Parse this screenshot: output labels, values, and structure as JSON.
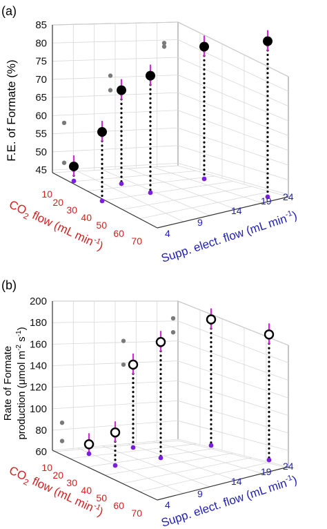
{
  "chart_data": [
    {
      "panel_label": "(a)",
      "type": "scatter",
      "zlabel": "F.E. of Formate (%)",
      "xlabel_main": "CO",
      "xlabel_sub": "2",
      "xlabel_rest": " flow (mL min",
      "xlabel_sup": "-1",
      "xlabel_end": ")",
      "ylabel_main": "Supp. elect. flow (mL min",
      "ylabel_sup": "-1",
      "ylabel_end": ")",
      "x_ticks": [
        "10",
        "20",
        "30",
        "40",
        "50",
        "60",
        "70"
      ],
      "y_ticks": [
        "4",
        "9",
        "14",
        "19",
        "24"
      ],
      "z_ticks": [
        "45",
        "50",
        "55",
        "60",
        "65",
        "70",
        "75",
        "80",
        "85"
      ],
      "zlim": [
        42,
        85
      ],
      "points": [
        {
          "x": 10,
          "y": 4,
          "z": 46
        },
        {
          "x": 20,
          "y": 4,
          "z": 55.5
        },
        {
          "x": 30,
          "y": 9,
          "z": 67
        },
        {
          "x": 40,
          "y": 9,
          "z": 71
        },
        {
          "x": 50,
          "y": 19,
          "z": 79
        },
        {
          "x": 60,
          "y": 24,
          "z": 80.5
        }
      ],
      "gray_points": [
        {
          "z": 47
        },
        {
          "z": 58
        },
        {
          "z": 67
        },
        {
          "z": 71
        },
        {
          "z": 79
        },
        {
          "z": 80
        }
      ],
      "colors": {
        "x_axis": "#d42020",
        "y_axis": "#2020b8",
        "error": "#d32ad6",
        "base": "#7a1fe0",
        "gray": "#7a7a7a"
      }
    },
    {
      "panel_label": "(b)",
      "type": "scatter",
      "zlabel_line1": "Rate of Formate",
      "zlabel_line2": "production (μmol m",
      "zlabel_sup1": "-2",
      "zlabel_mid": " s",
      "zlabel_sup2": "-1",
      "zlabel_end": ")",
      "xlabel_main": "CO",
      "xlabel_sub": "2",
      "xlabel_rest": " flow (mL min",
      "xlabel_sup": "-1",
      "xlabel_end": ")",
      "ylabel_main": "Supp. elect. flow (mL min",
      "ylabel_sup": "-1",
      "ylabel_end": ")",
      "x_ticks": [
        "10",
        "20",
        "30",
        "40",
        "50",
        "60",
        "70"
      ],
      "y_ticks": [
        "4",
        "9",
        "14",
        "19",
        "24"
      ],
      "z_ticks": [
        "60",
        "80",
        "100",
        "120",
        "140",
        "160",
        "180",
        "200"
      ],
      "zlim": [
        55,
        200
      ],
      "points": [
        {
          "x": 10,
          "y": 4,
          "z": 67
        },
        {
          "x": 20,
          "y": 4,
          "z": 78
        },
        {
          "x": 30,
          "y": 9,
          "z": 141
        },
        {
          "x": 40,
          "y": 9,
          "z": 162
        },
        {
          "x": 50,
          "y": 19,
          "z": 183
        },
        {
          "x": 60,
          "y": 24,
          "z": 169
        }
      ],
      "gray_points": [
        {
          "z": 70
        },
        {
          "z": 87
        },
        {
          "z": 141
        },
        {
          "z": 163
        },
        {
          "z": 171
        },
        {
          "z": 184
        }
      ],
      "colors": {
        "x_axis": "#d42020",
        "y_axis": "#2020b8",
        "error": "#d32ad6",
        "base": "#7a1fe0",
        "gray": "#7a7a7a"
      }
    }
  ]
}
